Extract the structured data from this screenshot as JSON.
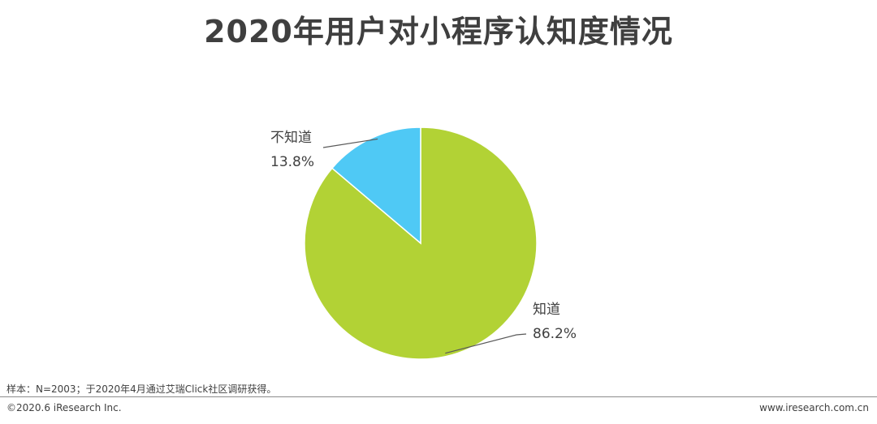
{
  "header": {
    "title": "2020年用户对小程序认知度情况"
  },
  "chart_data": {
    "type": "pie",
    "title": "2020年用户对小程序认知度情况",
    "slices": [
      {
        "label": "知道",
        "value": 86.2,
        "value_label": "86.2%",
        "color": "#b2d235"
      },
      {
        "label": "不知道",
        "value": 13.8,
        "value_label": "13.8%",
        "color": "#4fc9f5"
      }
    ]
  },
  "footer": {
    "source": "样本：N=2003；于2020年4月通过艾瑞Click社区调研获得。",
    "copyright": "©2020.6 iResearch Inc.",
    "website": "www.iresearch.com.cn"
  }
}
